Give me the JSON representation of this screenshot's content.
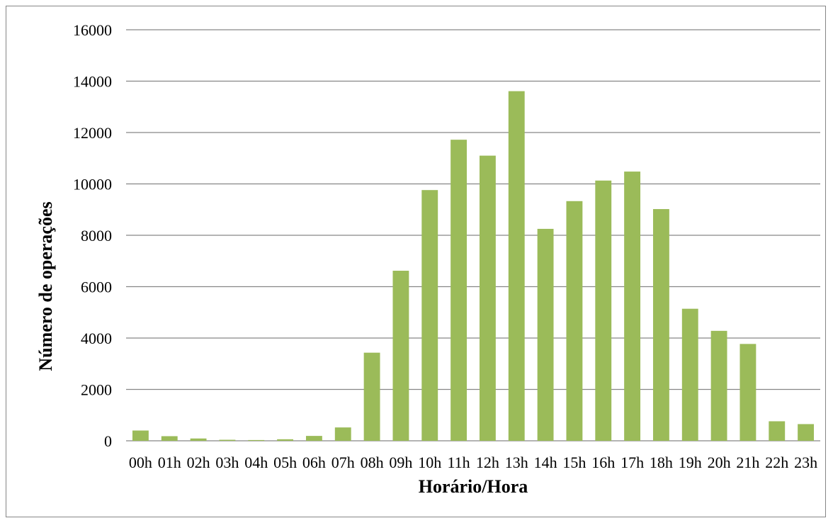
{
  "chart_data": {
    "type": "bar",
    "title": "",
    "xlabel": "Horário/Hora",
    "ylabel": "Número de operações",
    "ylim": [
      0,
      16000
    ],
    "yticks": [
      "0",
      "2000",
      "4000",
      "6000",
      "8000",
      "10000",
      "12000",
      "14000",
      "16000"
    ],
    "grid": true,
    "bar_color": "#9bbb59",
    "grid_color": "#868686",
    "categories": [
      "00h",
      "01h",
      "02h",
      "03h",
      "04h",
      "05h",
      "06h",
      "07h",
      "08h",
      "09h",
      "10h",
      "11h",
      "12h",
      "13h",
      "14h",
      "15h",
      "16h",
      "17h",
      "18h",
      "19h",
      "20h",
      "21h",
      "22h",
      "23h"
    ],
    "values": [
      400,
      180,
      90,
      40,
      30,
      60,
      190,
      520,
      3430,
      6620,
      9760,
      11720,
      11100,
      13610,
      8250,
      9330,
      10130,
      10480,
      9020,
      5140,
      4280,
      3770,
      760,
      650
    ]
  }
}
